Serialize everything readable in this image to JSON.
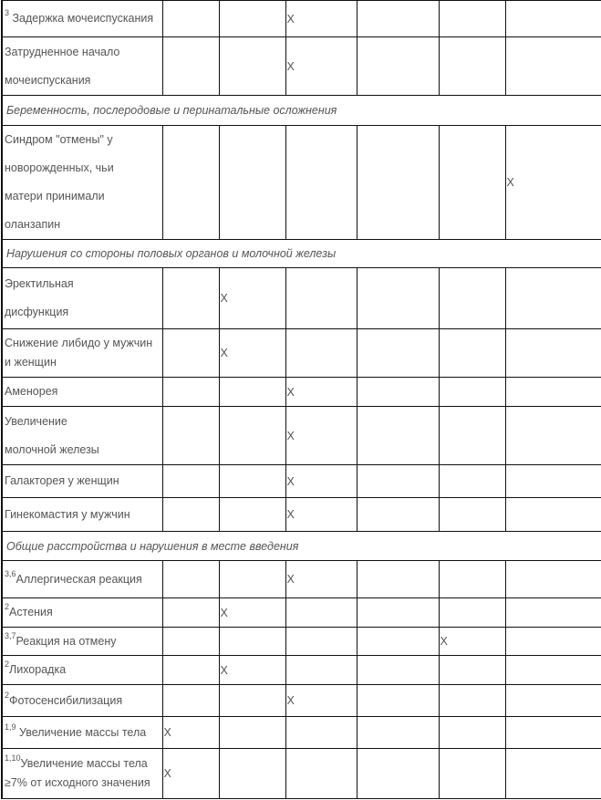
{
  "rows": [
    {
      "type": "row",
      "sup": "3",
      "lines": [
        " Задержка мочеиспускания"
      ],
      "mark": 2,
      "h": 40
    },
    {
      "type": "row",
      "sup": "",
      "lines": [
        "Затрудненное начало",
        "мочеиспускания"
      ],
      "mark": 2,
      "h": 64,
      "tall": true
    },
    {
      "type": "section",
      "text": "Беременность, послеродовые и перинатальные осложнения",
      "h": 33
    },
    {
      "type": "row",
      "sup": "",
      "lines": [
        "Синдром \"отмены\" у",
        "новорожденных, чьи",
        "матери принимали",
        "оланзапин"
      ],
      "mark": 5,
      "h": 125,
      "tall": true
    },
    {
      "type": "section",
      "text": "Нарушения со стороны половых органов и молочной железы",
      "h": 31
    },
    {
      "type": "row",
      "sup": "",
      "lines": [
        "Эректильная",
        "дисфункция"
      ],
      "mark": 1,
      "h": 67,
      "tall": true
    },
    {
      "type": "row",
      "sup": "",
      "lines": [
        "Снижение либидо у мужчин",
        "и женщин"
      ],
      "mark": 1,
      "h": 53
    },
    {
      "type": "row",
      "sup": "",
      "lines": [
        "Аменорея"
      ],
      "mark": 2,
      "h": 32
    },
    {
      "type": "row",
      "sup": "",
      "lines": [
        "Увеличение",
        "молочной железы"
      ],
      "mark": 2,
      "h": 64,
      "tall": true
    },
    {
      "type": "row",
      "sup": "",
      "lines": [
        "Галакторея у женщин"
      ],
      "mark": 2,
      "h": 36
    },
    {
      "type": "row",
      "sup": "",
      "lines": [
        "Гинекомастия у мужчин"
      ],
      "mark": 2,
      "h": 37
    },
    {
      "type": "section",
      "text": "Общие расстройства и нарушения в месте введения",
      "h": 32
    },
    {
      "type": "row",
      "sup": "3,6",
      "lines": [
        "Аллергическая реакция"
      ],
      "mark": 2,
      "h": 41
    },
    {
      "type": "row",
      "sup": "2",
      "lines": [
        "Астения"
      ],
      "mark": 1,
      "h": 32
    },
    {
      "type": "row",
      "sup": "3,7",
      "lines": [
        "Реакция на отмену"
      ],
      "mark": 4,
      "h": 31
    },
    {
      "type": "row",
      "sup": "2",
      "lines": [
        "Лихорадка"
      ],
      "mark": 1,
      "h": 32
    },
    {
      "type": "row",
      "sup": "2",
      "lines": [
        "Фотосенсибилизация"
      ],
      "mark": 2,
      "h": 35
    },
    {
      "type": "row",
      "sup": "1,9",
      "lines": [
        " Увеличение массы тела"
      ],
      "mark": 0,
      "h": 35
    },
    {
      "type": "row",
      "sup": "1,10",
      "lines": [
        "Увеличение массы тела",
        "≥7% от исходного значения"
      ],
      "mark": 0,
      "h": 55
    }
  ],
  "mark_symbol": "X"
}
